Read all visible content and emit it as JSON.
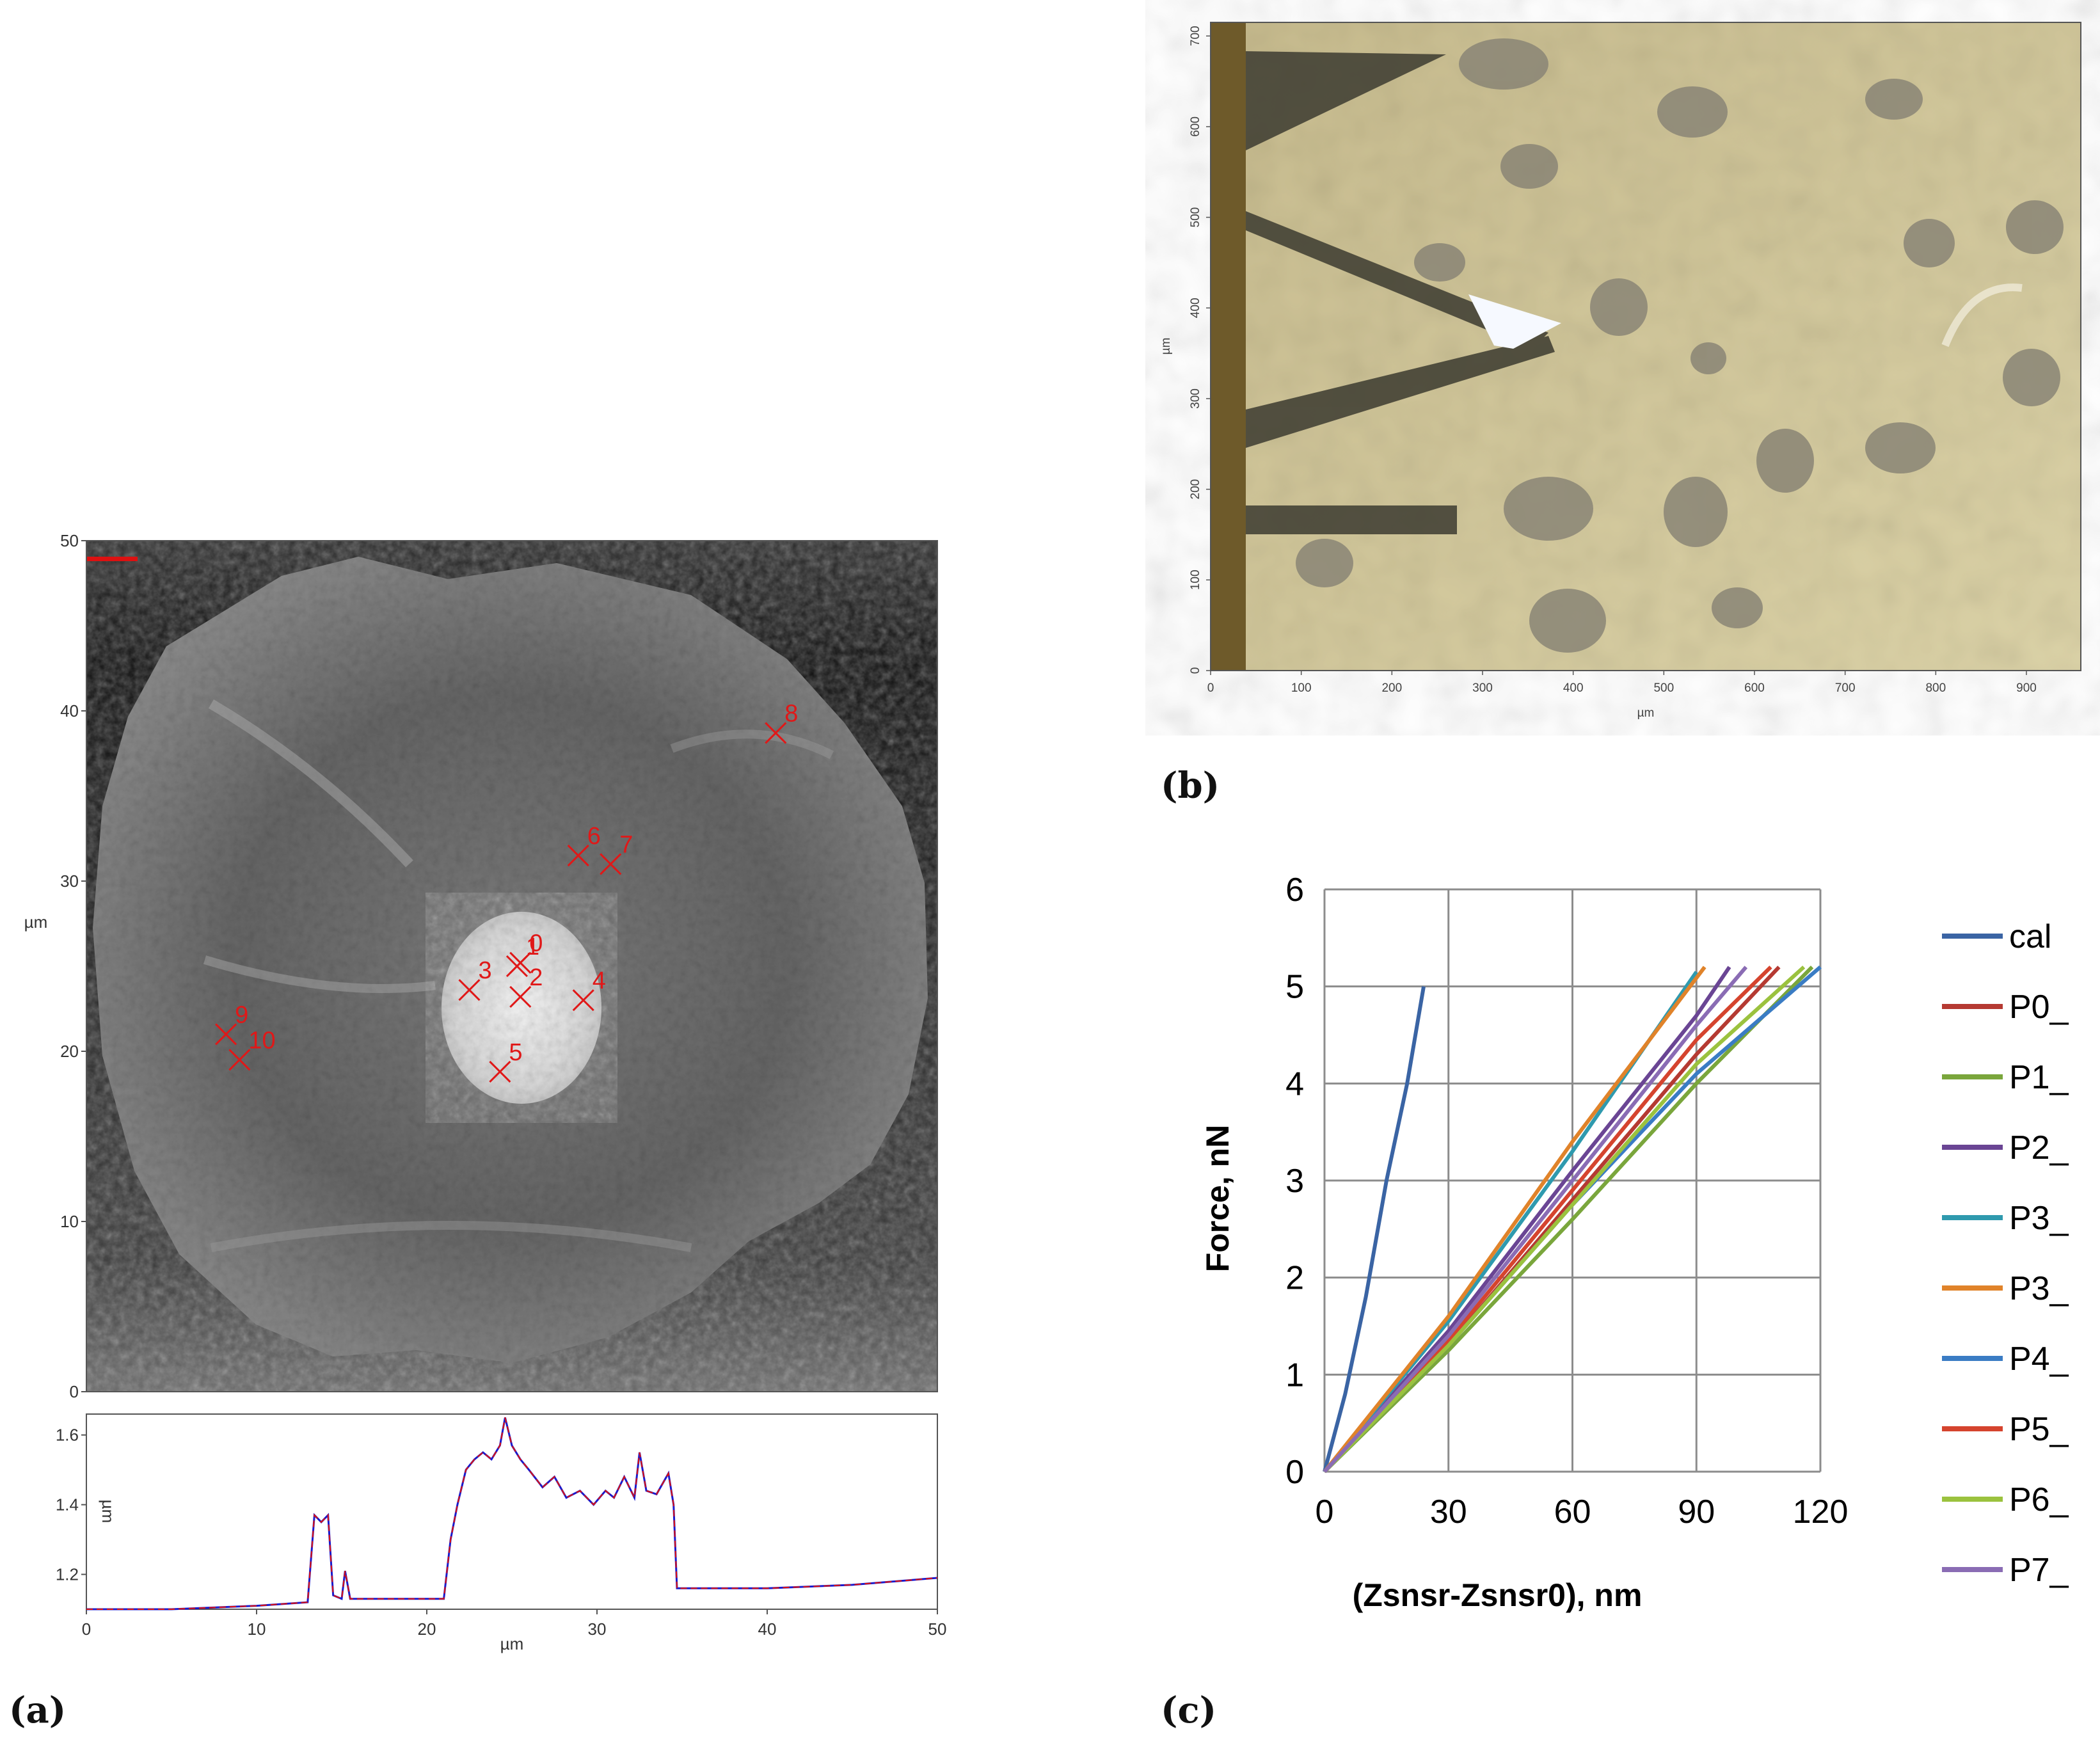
{
  "panels": {
    "a": "(a)",
    "b": "(b)",
    "c": "(c)"
  },
  "afm_image": {
    "y_unit": "µm",
    "y_ticks": [
      "0",
      "10",
      "20",
      "30",
      "40",
      "50"
    ],
    "markers": [
      {
        "label": "0",
        "x": 25.5,
        "y": 25.2
      },
      {
        "label": "1",
        "x": 25.3,
        "y": 25.0
      },
      {
        "label": "2",
        "x": 25.5,
        "y": 23.2
      },
      {
        "label": "3",
        "x": 22.5,
        "y": 23.6
      },
      {
        "label": "4",
        "x": 29.2,
        "y": 23.0
      },
      {
        "label": "5",
        "x": 24.3,
        "y": 18.8
      },
      {
        "label": "6",
        "x": 28.9,
        "y": 31.5
      },
      {
        "label": "7",
        "x": 30.8,
        "y": 31.0
      },
      {
        "label": "8",
        "x": 40.5,
        "y": 38.7
      },
      {
        "label": "9",
        "x": 8.2,
        "y": 21.0
      },
      {
        "label": "10",
        "x": 9.0,
        "y": 19.5
      }
    ]
  },
  "profile": {
    "x_unit": "µm",
    "y_unit": "µm",
    "x_ticks": [
      "0",
      "10",
      "20",
      "30",
      "40",
      "50"
    ],
    "y_ticks": [
      "1.2",
      "1.4",
      "1.6"
    ],
    "color_a": "#1a1acc",
    "color_b": "#dd1111",
    "points": [
      [
        0,
        1.1
      ],
      [
        5,
        1.1
      ],
      [
        10,
        1.11
      ],
      [
        13.0,
        1.12
      ],
      [
        13.4,
        1.37
      ],
      [
        13.8,
        1.35
      ],
      [
        14.2,
        1.37
      ],
      [
        14.5,
        1.14
      ],
      [
        15.0,
        1.13
      ],
      [
        15.2,
        1.21
      ],
      [
        15.5,
        1.13
      ],
      [
        21,
        1.13
      ],
      [
        21.4,
        1.3
      ],
      [
        21.8,
        1.4
      ],
      [
        22.3,
        1.5
      ],
      [
        22.8,
        1.53
      ],
      [
        23.3,
        1.55
      ],
      [
        23.8,
        1.53
      ],
      [
        24.3,
        1.57
      ],
      [
        24.6,
        1.65
      ],
      [
        25.0,
        1.57
      ],
      [
        25.5,
        1.53
      ],
      [
        26,
        1.5
      ],
      [
        26.8,
        1.45
      ],
      [
        27.5,
        1.48
      ],
      [
        28.2,
        1.42
      ],
      [
        29,
        1.44
      ],
      [
        29.8,
        1.4
      ],
      [
        30.5,
        1.44
      ],
      [
        31,
        1.42
      ],
      [
        31.6,
        1.48
      ],
      [
        32.2,
        1.42
      ],
      [
        32.5,
        1.55
      ],
      [
        32.9,
        1.44
      ],
      [
        33.5,
        1.43
      ],
      [
        34.2,
        1.49
      ],
      [
        34.5,
        1.4
      ],
      [
        34.7,
        1.16
      ],
      [
        35,
        1.16
      ],
      [
        40,
        1.16
      ],
      [
        45,
        1.17
      ],
      [
        50,
        1.19
      ]
    ]
  },
  "micrograph": {
    "x_unit": "µm",
    "y_unit": "µm",
    "x_ticks": [
      "0",
      "100",
      "200",
      "300",
      "400",
      "500",
      "600",
      "700",
      "800",
      "900"
    ],
    "y_ticks": [
      "0",
      "100",
      "200",
      "300",
      "400",
      "500",
      "600",
      "700"
    ]
  },
  "chart_data": {
    "type": "line",
    "xlabel": "(Zsnsr-Zsnsr0), nm",
    "ylabel": "Force, nN",
    "xlim": [
      0,
      120
    ],
    "ylim": [
      0,
      6
    ],
    "x_ticks": [
      "0",
      "30",
      "60",
      "90",
      "120"
    ],
    "y_ticks": [
      "0",
      "1",
      "2",
      "3",
      "4",
      "5",
      "6"
    ],
    "grid": true,
    "legend_position": "right",
    "series": [
      {
        "name": "cal",
        "color": "#3a64a4",
        "points": [
          [
            0,
            0
          ],
          [
            5,
            0.8
          ],
          [
            10,
            1.8
          ],
          [
            15,
            3.0
          ],
          [
            20,
            4.0
          ],
          [
            24,
            5.0
          ]
        ]
      },
      {
        "name": "P0_",
        "color": "#b53a32",
        "points": [
          [
            0,
            0
          ],
          [
            30,
            1.3
          ],
          [
            60,
            2.8
          ],
          [
            90,
            4.3
          ],
          [
            110,
            5.2
          ]
        ]
      },
      {
        "name": "P1_",
        "color": "#7aa63c",
        "points": [
          [
            0,
            0
          ],
          [
            30,
            1.25
          ],
          [
            60,
            2.6
          ],
          [
            90,
            4.0
          ],
          [
            118,
            5.2
          ]
        ]
      },
      {
        "name": "P2_",
        "color": "#6a4594",
        "points": [
          [
            0,
            0
          ],
          [
            30,
            1.45
          ],
          [
            60,
            3.1
          ],
          [
            90,
            4.7
          ],
          [
            98,
            5.2
          ]
        ]
      },
      {
        "name": "P3_",
        "color": "#2f9aae",
        "points": [
          [
            0,
            0
          ],
          [
            30,
            1.55
          ],
          [
            60,
            3.3
          ],
          [
            90,
            5.15
          ]
        ]
      },
      {
        "name": "P3_",
        "color": "#e0832a",
        "points": [
          [
            0,
            0
          ],
          [
            30,
            1.6
          ],
          [
            60,
            3.4
          ],
          [
            92,
            5.2
          ]
        ]
      },
      {
        "name": "P4_",
        "color": "#3a7cc4",
        "points": [
          [
            0,
            0
          ],
          [
            30,
            1.3
          ],
          [
            60,
            2.75
          ],
          [
            90,
            4.1
          ],
          [
            120,
            5.2
          ]
        ]
      },
      {
        "name": "P5_",
        "color": "#d5442e",
        "points": [
          [
            0,
            0
          ],
          [
            30,
            1.35
          ],
          [
            60,
            2.9
          ],
          [
            90,
            4.45
          ],
          [
            108,
            5.2
          ]
        ]
      },
      {
        "name": "P6_",
        "color": "#9bc23e",
        "points": [
          [
            0,
            0
          ],
          [
            30,
            1.3
          ],
          [
            60,
            2.75
          ],
          [
            90,
            4.2
          ],
          [
            116,
            5.2
          ]
        ]
      },
      {
        "name": "P7_",
        "color": "#8a6cb4",
        "points": [
          [
            0,
            0
          ],
          [
            30,
            1.4
          ],
          [
            60,
            3.0
          ],
          [
            90,
            4.6
          ],
          [
            102,
            5.2
          ]
        ]
      }
    ]
  }
}
